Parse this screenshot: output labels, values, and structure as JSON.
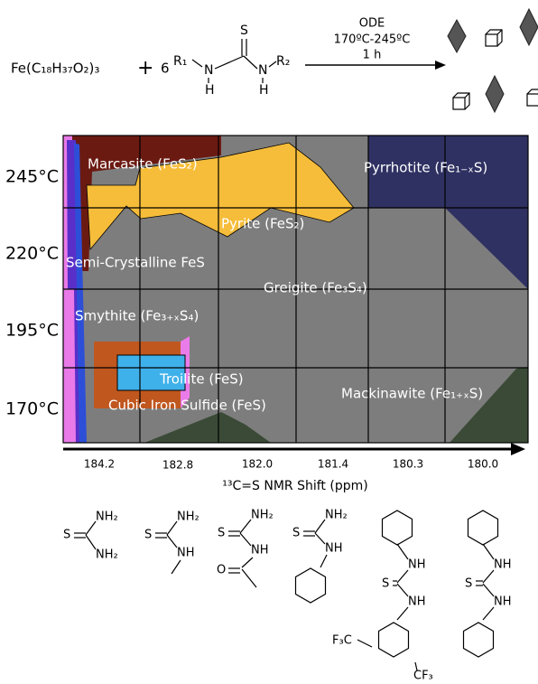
{
  "reaction": {
    "precursor": "Fe(C₁₈H₃₇O₂)₃",
    "plus": "+",
    "coefficient": "6",
    "thiourea": {
      "sulfur": "S",
      "r1": "R₁",
      "r2": "R₂",
      "nitrogen": [
        "N",
        "N"
      ],
      "hydrogen": [
        "H",
        "H"
      ]
    },
    "conditions": [
      "ODE",
      "170ºC-245ºC",
      "1 h"
    ]
  },
  "phase_diagram": {
    "y_labels": [
      "245°C",
      "220°C",
      "195°C",
      "170°C"
    ],
    "x_labels": [
      "184.2",
      "182.8",
      "182.0",
      "181.4",
      "180.3",
      "180.0"
    ],
    "x_title": "¹³C=S NMR Shift (ppm)",
    "phases": {
      "marcasite": "Marcasite (FeS₂)",
      "pyrite": "Pyrite (FeS₂)",
      "pyrrhotite": "Pyrrhotite (Fe₁₋ₓS)",
      "semi_crystalline": "Semi-Crystalline FeS",
      "greigite": "Greigite (Fe₃S₄)",
      "smythite": "Smythite (Fe₃₊ₓS₄)",
      "troilite": "Troilite (FeS)",
      "cubic": "Cubic Iron Sulfide (FeS)",
      "mackinawite": "Mackinawite (Fe₁₊ₓS)"
    }
  },
  "ligands": [
    {
      "labels": [
        "S",
        "NH₂",
        "NH₂"
      ]
    },
    {
      "labels": [
        "S",
        "NH₂",
        "NH"
      ]
    },
    {
      "labels": [
        "S",
        "NH₂",
        "NH",
        "O"
      ]
    },
    {
      "labels": [
        "S",
        "NH₂",
        "NH"
      ]
    },
    {
      "labels": [
        "NH",
        "S",
        "NH",
        "F₃C",
        "CF₃"
      ]
    },
    {
      "labels": [
        "NH",
        "S",
        "NH"
      ]
    }
  ]
}
